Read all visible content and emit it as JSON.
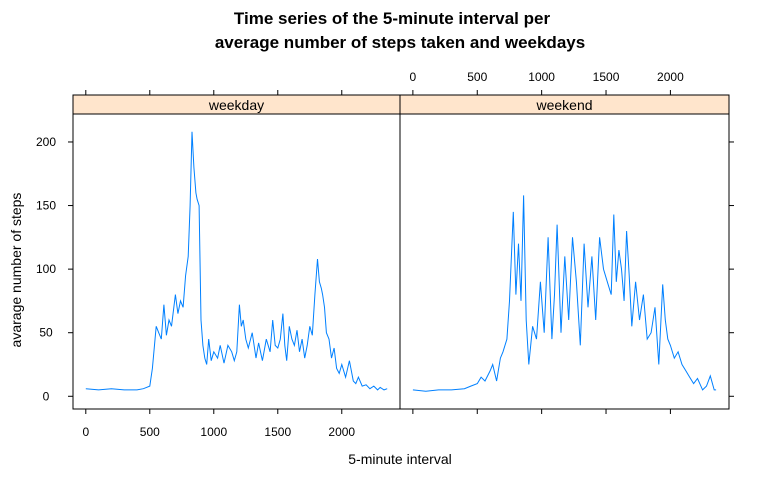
{
  "chart_data": {
    "type": "line",
    "title": "Time series of the 5-minute interval per average number of steps taken and weekdays",
    "title_lines": [
      "Time series of the 5-minute interval per",
      "average number of steps taken and weekdays"
    ],
    "xlabel": "5-minute interval",
    "ylabel": "avarage number of steps",
    "xlim": [
      -100,
      2455
    ],
    "ylim": [
      -10,
      222
    ],
    "x_ticks": [
      0,
      500,
      1000,
      1500,
      2000
    ],
    "y_ticks": [
      0,
      50,
      100,
      150,
      200
    ],
    "line_color": "#0080ff",
    "strip_color": "#ffe5cc",
    "grid": false,
    "layout": "two panels side by side",
    "panels": [
      {
        "name": "weekday",
        "x": [
          0,
          100,
          200,
          300,
          400,
          450,
          500,
          520,
          550,
          570,
          590,
          610,
          630,
          650,
          670,
          700,
          720,
          740,
          760,
          780,
          800,
          815,
          830,
          845,
          860,
          870,
          885,
          900,
          915,
          930,
          945,
          960,
          980,
          1000,
          1030,
          1050,
          1080,
          1110,
          1140,
          1160,
          1180,
          1200,
          1215,
          1230,
          1250,
          1270,
          1300,
          1330,
          1350,
          1380,
          1410,
          1440,
          1460,
          1480,
          1500,
          1520,
          1540,
          1555,
          1570,
          1590,
          1610,
          1630,
          1650,
          1670,
          1690,
          1710,
          1730,
          1750,
          1770,
          1790,
          1810,
          1825,
          1840,
          1850,
          1865,
          1880,
          1900,
          1920,
          1940,
          1960,
          1980,
          2000,
          2030,
          2060,
          2090,
          2110,
          2130,
          2160,
          2190,
          2220,
          2250,
          2280,
          2300,
          2330,
          2355
        ],
        "y": [
          6,
          5,
          6,
          5,
          5,
          6,
          8,
          22,
          55,
          50,
          45,
          72,
          48,
          60,
          55,
          80,
          65,
          75,
          70,
          95,
          110,
          150,
          208,
          180,
          160,
          155,
          150,
          60,
          40,
          30,
          25,
          45,
          28,
          35,
          30,
          40,
          26,
          40,
          35,
          28,
          35,
          72,
          55,
          60,
          45,
          38,
          50,
          30,
          42,
          28,
          45,
          35,
          60,
          40,
          38,
          45,
          65,
          40,
          28,
          55,
          45,
          40,
          52,
          35,
          45,
          30,
          40,
          55,
          48,
          80,
          108,
          90,
          85,
          80,
          70,
          50,
          45,
          30,
          38,
          22,
          18,
          25,
          15,
          28,
          12,
          10,
          15,
          8,
          9,
          6,
          8,
          5,
          7,
          5,
          6
        ]
      },
      {
        "name": "weekend",
        "x": [
          0,
          100,
          200,
          300,
          400,
          450,
          500,
          530,
          560,
          600,
          620,
          650,
          680,
          700,
          730,
          750,
          780,
          800,
          820,
          840,
          860,
          880,
          900,
          915,
          930,
          960,
          990,
          1020,
          1050,
          1080,
          1100,
          1120,
          1150,
          1180,
          1210,
          1240,
          1270,
          1300,
          1330,
          1360,
          1390,
          1420,
          1450,
          1480,
          1510,
          1540,
          1560,
          1580,
          1600,
          1620,
          1640,
          1660,
          1680,
          1700,
          1730,
          1760,
          1790,
          1820,
          1850,
          1880,
          1910,
          1940,
          1960,
          1980,
          2000,
          2030,
          2060,
          2090,
          2120,
          2150,
          2180,
          2210,
          2250,
          2280,
          2310,
          2340,
          2355
        ],
        "y": [
          5,
          4,
          5,
          5,
          6,
          8,
          10,
          15,
          12,
          20,
          25,
          12,
          30,
          35,
          45,
          75,
          145,
          80,
          120,
          75,
          158,
          60,
          25,
          40,
          55,
          45,
          90,
          50,
          125,
          45,
          80,
          135,
          50,
          110,
          60,
          125,
          90,
          40,
          120,
          70,
          110,
          60,
          125,
          100,
          90,
          80,
          143,
          90,
          115,
          100,
          75,
          130,
          95,
          55,
          90,
          60,
          80,
          45,
          50,
          70,
          25,
          88,
          60,
          45,
          40,
          30,
          35,
          25,
          20,
          15,
          10,
          14,
          5,
          8,
          16,
          5,
          5
        ]
      }
    ]
  }
}
